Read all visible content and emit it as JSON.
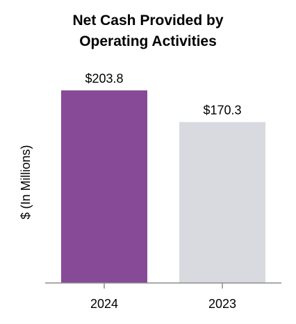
{
  "chart_data": {
    "type": "bar",
    "title_lines": [
      "Net Cash Provided by",
      "Operating Activities"
    ],
    "ylabel": "$ (In Millions)",
    "xlabel": "",
    "categories": [
      "2024",
      "2023"
    ],
    "values": [
      203.8,
      170.3
    ],
    "value_labels": [
      "$203.8",
      "$170.3"
    ],
    "bar_colors": [
      "#874a97",
      "#d9dae0"
    ],
    "axis_color": "#8c8c8c",
    "ylim": [
      0,
      203.8
    ],
    "grid": false,
    "legend": "none"
  }
}
